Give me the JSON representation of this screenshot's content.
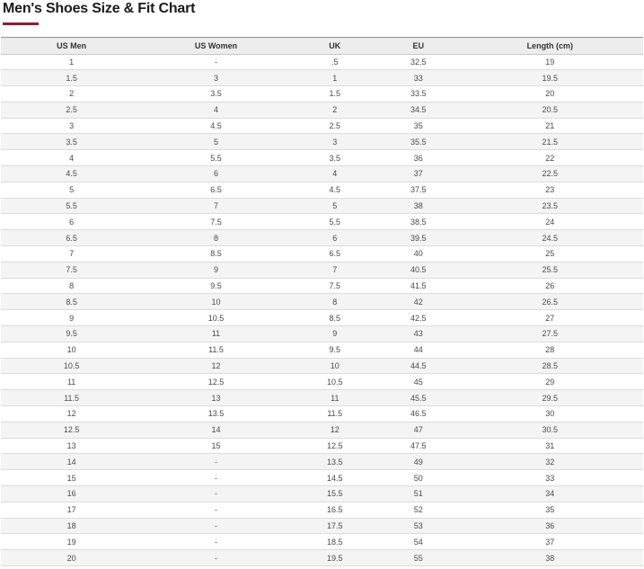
{
  "page": {
    "title": "Men's Shoes Size & Fit Chart",
    "accent_color": "#8e1f33"
  },
  "chart_data": {
    "type": "table",
    "title": "Men's Shoes Size & Fit Chart",
    "columns": [
      "US Men",
      "US Women",
      "UK",
      "EU",
      "Length (cm)"
    ],
    "rows": [
      [
        "1",
        "-",
        ".5",
        "32.5",
        "19"
      ],
      [
        "1.5",
        "3",
        "1",
        "33",
        "19.5"
      ],
      [
        "2",
        "3.5",
        "1.5",
        "33.5",
        "20"
      ],
      [
        "2.5",
        "4",
        "2",
        "34.5",
        "20.5"
      ],
      [
        "3",
        "4.5",
        "2.5",
        "35",
        "21"
      ],
      [
        "3.5",
        "5",
        "3",
        "35.5",
        "21.5"
      ],
      [
        "4",
        "5.5",
        "3.5",
        "36",
        "22"
      ],
      [
        "4.5",
        "6",
        "4",
        "37",
        "22.5"
      ],
      [
        "5",
        "6.5",
        "4.5",
        "37.5",
        "23"
      ],
      [
        "5.5",
        "7",
        "5",
        "38",
        "23.5"
      ],
      [
        "6",
        "7.5",
        "5.5",
        "38.5",
        "24"
      ],
      [
        "6.5",
        "8",
        "6",
        "39.5",
        "24.5"
      ],
      [
        "7",
        "8.5",
        "6.5",
        "40",
        "25"
      ],
      [
        "7.5",
        "9",
        "7",
        "40.5",
        "25.5"
      ],
      [
        "8",
        "9.5",
        "7.5",
        "41.5",
        "26"
      ],
      [
        "8.5",
        "10",
        "8",
        "42",
        "26.5"
      ],
      [
        "9",
        "10.5",
        "8.5",
        "42.5",
        "27"
      ],
      [
        "9.5",
        "11",
        "9",
        "43",
        "27.5"
      ],
      [
        "10",
        "11.5",
        "9.5",
        "44",
        "28"
      ],
      [
        "10.5",
        "12",
        "10",
        "44.5",
        "28.5"
      ],
      [
        "11",
        "12.5",
        "10.5",
        "45",
        "29"
      ],
      [
        "11.5",
        "13",
        "11",
        "45.5",
        "29.5"
      ],
      [
        "12",
        "13.5",
        "11.5",
        "46.5",
        "30"
      ],
      [
        "12.5",
        "14",
        "12",
        "47",
        "30.5"
      ],
      [
        "13",
        "15",
        "12.5",
        "47.5",
        "31"
      ],
      [
        "14",
        "-",
        "13.5",
        "49",
        "32"
      ],
      [
        "15",
        "-",
        "14.5",
        "50",
        "33"
      ],
      [
        "16",
        "-",
        "15.5",
        "51",
        "34"
      ],
      [
        "17",
        "-",
        "16.5",
        "52",
        "35"
      ],
      [
        "18",
        "-",
        "17.5",
        "53",
        "36"
      ],
      [
        "19",
        "-",
        "18.5",
        "54",
        "37"
      ],
      [
        "20",
        "-",
        "19.5",
        "55",
        "38"
      ]
    ]
  }
}
